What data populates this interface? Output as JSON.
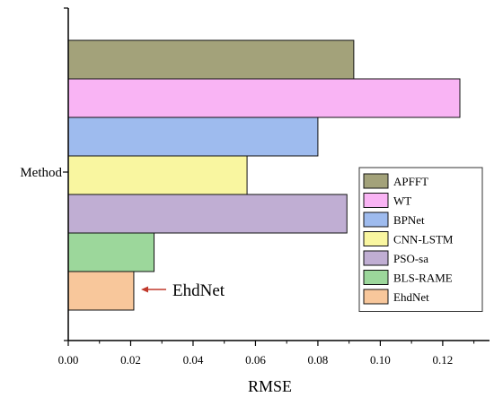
{
  "chart_data": {
    "type": "bar",
    "orientation": "horizontal",
    "category_label": "Method",
    "xlabel": "RMSE",
    "xlim": [
      0,
      0.135
    ],
    "x_ticks": [
      0.0,
      0.02,
      0.04,
      0.06,
      0.08,
      0.1,
      0.12
    ],
    "x_tick_labels": [
      "0.00",
      "0.02",
      "0.04",
      "0.06",
      "0.08",
      "0.10",
      "0.12"
    ],
    "grid": false,
    "legend_position": "right",
    "series": [
      {
        "name": "APFFT",
        "value": 0.0915,
        "color": "#a3a27a"
      },
      {
        "name": "WT",
        "value": 0.1255,
        "color": "#f9b4f4"
      },
      {
        "name": "BPNet",
        "value": 0.08,
        "color": "#9ebbee"
      },
      {
        "name": "CNN-LSTM",
        "value": 0.0573,
        "color": "#f9f6a0"
      },
      {
        "name": "PSO-sa",
        "value": 0.0893,
        "color": "#c0aed3"
      },
      {
        "name": "BLS-RAME",
        "value": 0.0275,
        "color": "#9cd79b"
      },
      {
        "name": "EhdNet",
        "value": 0.021,
        "color": "#f8c79b"
      }
    ],
    "annotation": {
      "text": "EhdNet",
      "target": "EhdNet",
      "arrow_color": "#c0392b"
    }
  }
}
